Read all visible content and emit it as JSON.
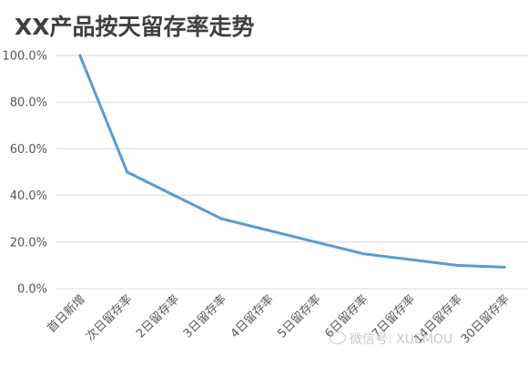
{
  "chart_data": {
    "type": "line",
    "title": "XX产品按天留存率走势",
    "categories": [
      "首日新增",
      "次日留存率",
      "2日留存率",
      "3日留存率",
      "4日留存率",
      "5日留存率",
      "6日留存率",
      "7日留存率",
      "14日留存率",
      "30日留存率"
    ],
    "series": [
      {
        "values": [
          100,
          50,
          40,
          30,
          25,
          20,
          15,
          12.5,
          10,
          9.2
        ]
      }
    ],
    "y_ticks": [
      "0.0%",
      "20.0%",
      "40.0%",
      "60.0%",
      "80.0%",
      "100.0%"
    ],
    "ylim": [
      0,
      100
    ],
    "grid": true,
    "line_color": "#5b9bd5"
  },
  "watermark": {
    "text": "微信号: XUEMOU"
  }
}
